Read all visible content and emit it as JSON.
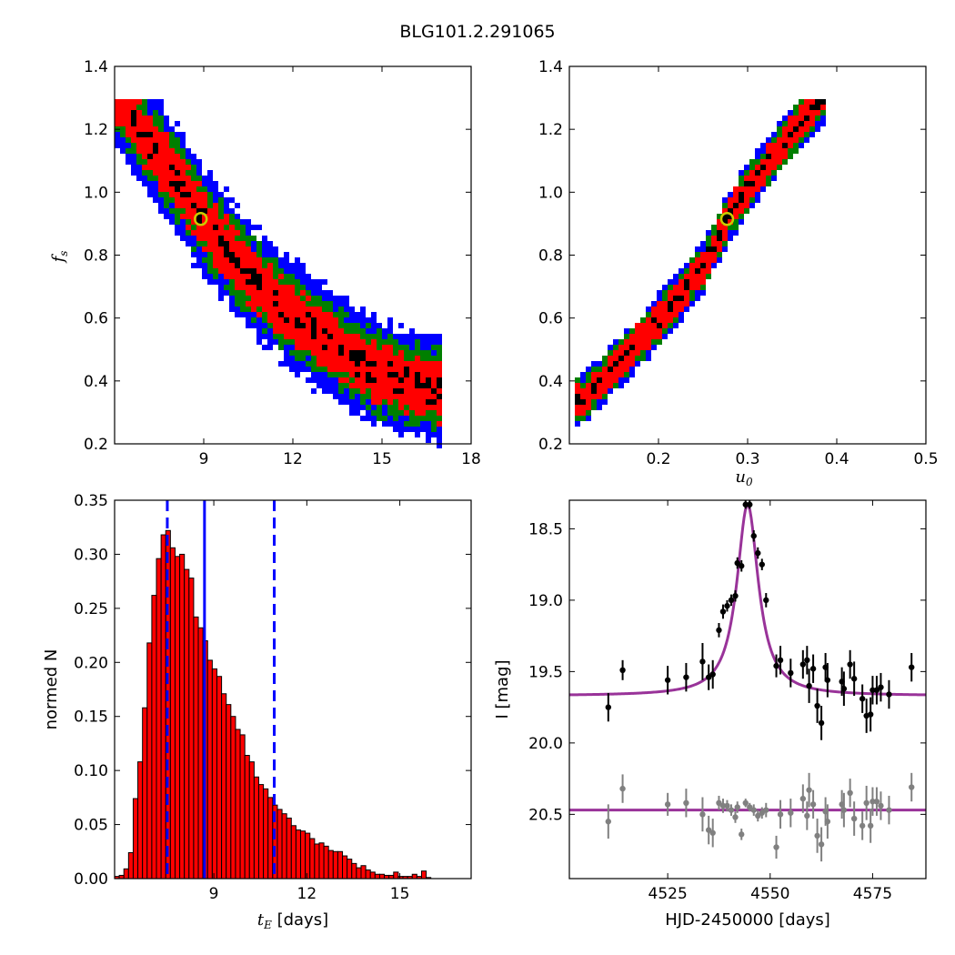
{
  "figure": {
    "title": "BLG101.2.291065"
  },
  "chart_data": [
    {
      "type": "heatmap",
      "panel": "top-left",
      "xlabel": "",
      "ylabel_main": "f",
      "ylabel_sub": "s",
      "xlim": [
        6,
        18
      ],
      "ylim": [
        0.2,
        1.4
      ],
      "xticks": [
        "9",
        "12",
        "15",
        "18"
      ],
      "yticks": [
        "0.2",
        "0.4",
        "0.6",
        "0.8",
        "1.0",
        "1.2",
        "1.4"
      ],
      "levels": [
        {
          "name": "3-sigma",
          "color": "#0000ff",
          "width": 0.17
        },
        {
          "name": "2-sigma",
          "color": "#007f00",
          "width": 0.12
        },
        {
          "name": "1-sigma",
          "color": "#ff0000",
          "width": 0.085
        },
        {
          "name": "core",
          "color": "#000000",
          "width": 0.03
        }
      ],
      "ridge": [
        [
          6.2,
          1.3
        ],
        [
          7.0,
          1.18
        ],
        [
          8.0,
          1.05
        ],
        [
          9.0,
          0.91
        ],
        [
          10.0,
          0.79
        ],
        [
          11.0,
          0.69
        ],
        [
          12.0,
          0.61
        ],
        [
          13.0,
          0.54
        ],
        [
          14.0,
          0.47
        ],
        [
          15.0,
          0.42
        ],
        [
          16.0,
          0.39
        ],
        [
          17.0,
          0.37
        ]
      ],
      "best_fit": {
        "x": 8.9,
        "y": 0.915,
        "color": "#cccc00"
      },
      "grid": false
    },
    {
      "type": "heatmap",
      "panel": "top-right",
      "xlabel_main": "u",
      "xlabel_sub": "0",
      "ylabel": "",
      "xlim": [
        0.1,
        0.5
      ],
      "ylim": [
        0.2,
        1.4
      ],
      "xticks": [
        "0.2",
        "0.3",
        "0.4",
        "0.5"
      ],
      "yticks": [
        "0.2",
        "0.4",
        "0.6",
        "0.8",
        "1.0",
        "1.2",
        "1.4"
      ],
      "levels": [
        {
          "name": "3-sigma",
          "color": "#0000ff",
          "width": 0.08
        },
        {
          "name": "2-sigma",
          "color": "#007f00",
          "width": 0.065
        },
        {
          "name": "1-sigma",
          "color": "#ff0000",
          "width": 0.048
        },
        {
          "name": "core",
          "color": "#000000",
          "width": 0.016
        }
      ],
      "ridge": [
        [
          0.117,
          0.34
        ],
        [
          0.15,
          0.44
        ],
        [
          0.2,
          0.59
        ],
        [
          0.25,
          0.76
        ],
        [
          0.277,
          0.915
        ],
        [
          0.3,
          1.01
        ],
        [
          0.35,
          1.19
        ],
        [
          0.385,
          1.3
        ]
      ],
      "best_fit": {
        "x": 0.277,
        "y": 0.915,
        "color": "#cccc00"
      },
      "grid": false
    },
    {
      "type": "bar",
      "panel": "bottom-left",
      "xlabel_main": "t",
      "xlabel_sub": "E",
      "xlabel_suffix": " [days]",
      "ylabel": "normed N",
      "xlim": [
        5.8,
        17.3
      ],
      "ylim": [
        0.0,
        0.35
      ],
      "xticks": [
        "9",
        "12",
        "15"
      ],
      "yticks": [
        "0.00",
        "0.05",
        "0.10",
        "0.15",
        "0.20",
        "0.25",
        "0.30",
        "0.35"
      ],
      "bin_start": 5.8,
      "bin_width": 0.15,
      "bar_color": "#ff0000",
      "values": [
        0.002,
        0.003,
        0.009,
        0.024,
        0.074,
        0.108,
        0.158,
        0.218,
        0.262,
        0.296,
        0.318,
        0.322,
        0.306,
        0.298,
        0.3,
        0.286,
        0.278,
        0.242,
        0.232,
        0.22,
        0.202,
        0.194,
        0.187,
        0.171,
        0.161,
        0.15,
        0.138,
        0.133,
        0.114,
        0.108,
        0.094,
        0.087,
        0.083,
        0.075,
        0.068,
        0.064,
        0.06,
        0.056,
        0.049,
        0.045,
        0.044,
        0.042,
        0.037,
        0.032,
        0.033,
        0.03,
        0.026,
        0.025,
        0.025,
        0.021,
        0.018,
        0.014,
        0.01,
        0.012,
        0.008,
        0.006,
        0.004,
        0.004,
        0.003,
        0.003,
        0.006,
        0.002,
        0.002,
        0.002,
        0.004,
        0.002,
        0.007,
        0.001
      ],
      "vlines": [
        {
          "x": 8.7,
          "style": "solid",
          "color": "#0000ff"
        },
        {
          "x": 7.5,
          "style": "dashed",
          "color": "#0000ff"
        },
        {
          "x": 10.95,
          "style": "dashed",
          "color": "#0000ff"
        }
      ],
      "grid": false
    },
    {
      "type": "scatter",
      "panel": "bottom-right",
      "xlabel": "HJD-2450000 [days]",
      "ylabel": "I [mag]",
      "xlim": [
        4501,
        4588
      ],
      "ylim": [
        20.95,
        18.3
      ],
      "xticks": [
        "4525",
        "4550",
        "4575"
      ],
      "yticks": [
        "18.5",
        "19.0",
        "19.5",
        "20.0",
        "20.5"
      ],
      "model": {
        "color": "#993399",
        "baseline": 19.67,
        "peak": 18.33,
        "t0": 4544.5,
        "width": 3.2,
        "residual_baseline": 20.47
      },
      "series": [
        {
          "color": "#000000",
          "points": [
            [
              4510.5,
              19.75,
              0.1
            ],
            [
              4514,
              19.49,
              0.07
            ],
            [
              4525,
              19.56,
              0.1
            ],
            [
              4529.5,
              19.54,
              0.1
            ],
            [
              4533.5,
              19.43,
              0.13
            ],
            [
              4535,
              19.54,
              0.09
            ],
            [
              4536,
              19.52,
              0.1
            ],
            [
              4537.5,
              19.21,
              0.05
            ],
            [
              4538.5,
              19.08,
              0.05
            ],
            [
              4539.5,
              19.04,
              0.04
            ],
            [
              4540.5,
              19.0,
              0.04
            ],
            [
              4541.5,
              18.97,
              0.04
            ],
            [
              4542,
              18.74,
              0.04
            ],
            [
              4543,
              18.76,
              0.04
            ],
            [
              4544,
              18.33,
              0.03
            ],
            [
              4545,
              18.33,
              0.03
            ],
            [
              4546,
              18.55,
              0.04
            ],
            [
              4547,
              18.67,
              0.04
            ],
            [
              4548,
              18.75,
              0.04
            ],
            [
              4549,
              19.0,
              0.05
            ],
            [
              4551.5,
              19.46,
              0.08
            ],
            [
              4552.5,
              19.42,
              0.1
            ],
            [
              4555,
              19.51,
              0.1
            ],
            [
              4558,
              19.45,
              0.1
            ],
            [
              4559,
              19.42,
              0.1
            ],
            [
              4559.5,
              19.6,
              0.12
            ],
            [
              4560.5,
              19.48,
              0.1
            ],
            [
              4561.5,
              19.74,
              0.12
            ],
            [
              4562.5,
              19.86,
              0.12
            ],
            [
              4563.5,
              19.47,
              0.1
            ],
            [
              4564,
              19.56,
              0.12
            ],
            [
              4567.5,
              19.57,
              0.1
            ],
            [
              4568,
              19.62,
              0.12
            ],
            [
              4569.5,
              19.45,
              0.1
            ],
            [
              4570.5,
              19.55,
              0.12
            ],
            [
              4572.5,
              19.69,
              0.1
            ],
            [
              4573.5,
              19.81,
              0.12
            ],
            [
              4574.5,
              19.8,
              0.12
            ],
            [
              4575,
              19.63,
              0.1
            ],
            [
              4576,
              19.63,
              0.1
            ],
            [
              4577,
              19.61,
              0.1
            ],
            [
              4579,
              19.66,
              0.1
            ],
            [
              4584.5,
              19.47,
              0.1
            ]
          ]
        },
        {
          "color": "#808080",
          "points": [
            [
              4510.5,
              20.55,
              0.12
            ],
            [
              4514,
              20.32,
              0.1
            ],
            [
              4525,
              20.43,
              0.08
            ],
            [
              4529.5,
              20.42,
              0.1
            ],
            [
              4533.5,
              20.5,
              0.12
            ],
            [
              4535,
              20.61,
              0.1
            ],
            [
              4536,
              20.63,
              0.1
            ],
            [
              4537.5,
              20.42,
              0.05
            ],
            [
              4538.5,
              20.44,
              0.05
            ],
            [
              4539.5,
              20.44,
              0.04
            ],
            [
              4540.5,
              20.47,
              0.04
            ],
            [
              4541.5,
              20.52,
              0.04
            ],
            [
              4542,
              20.45,
              0.04
            ],
            [
              4543,
              20.64,
              0.04
            ],
            [
              4544,
              20.42,
              0.03
            ],
            [
              4545,
              20.45,
              0.03
            ],
            [
              4546,
              20.47,
              0.04
            ],
            [
              4547,
              20.51,
              0.04
            ],
            [
              4548,
              20.49,
              0.04
            ],
            [
              4549,
              20.47,
              0.05
            ],
            [
              4551.5,
              20.73,
              0.08
            ],
            [
              4552.5,
              20.5,
              0.1
            ],
            [
              4555,
              20.49,
              0.1
            ],
            [
              4558,
              20.39,
              0.1
            ],
            [
              4559,
              20.51,
              0.1
            ],
            [
              4559.5,
              20.33,
              0.12
            ],
            [
              4560.5,
              20.43,
              0.1
            ],
            [
              4561.5,
              20.65,
              0.12
            ],
            [
              4562.5,
              20.71,
              0.12
            ],
            [
              4563.5,
              20.48,
              0.1
            ],
            [
              4564,
              20.55,
              0.12
            ],
            [
              4567.5,
              20.43,
              0.1
            ],
            [
              4568,
              20.47,
              0.12
            ],
            [
              4569.5,
              20.35,
              0.1
            ],
            [
              4570.5,
              20.53,
              0.12
            ],
            [
              4572.5,
              20.58,
              0.1
            ],
            [
              4573.5,
              20.42,
              0.12
            ],
            [
              4574.5,
              20.58,
              0.12
            ],
            [
              4575,
              20.41,
              0.1
            ],
            [
              4576,
              20.41,
              0.1
            ],
            [
              4577,
              20.44,
              0.1
            ],
            [
              4579,
              20.47,
              0.1
            ],
            [
              4584.5,
              20.31,
              0.1
            ]
          ]
        }
      ],
      "grid": false
    }
  ]
}
